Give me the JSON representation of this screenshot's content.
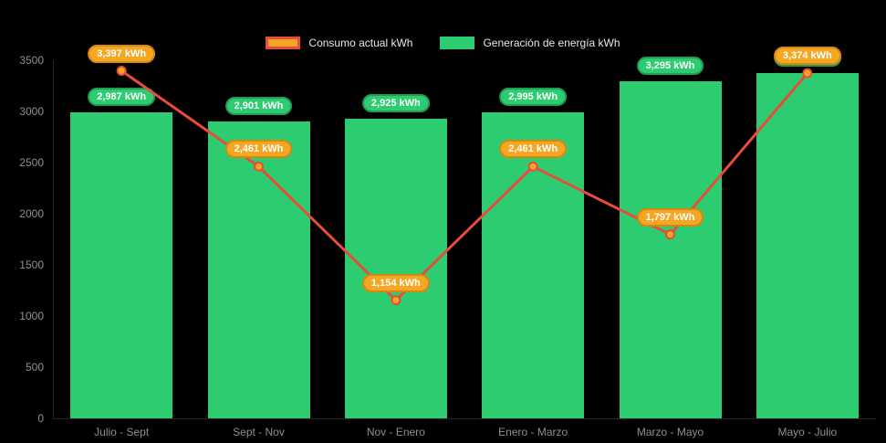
{
  "chart_data": {
    "type": "bar",
    "subtype": "bar+line combo",
    "categories": [
      "Julio - Sept",
      "Sept - Nov",
      "Nov - Enero",
      "Enero - Marzo",
      "Marzo - Mayo",
      "Mayo - Julio"
    ],
    "series": [
      {
        "name": "Consumo actual kWh",
        "type": "line",
        "color": "#e74c3c",
        "marker_color": "#f5a623",
        "values": [
          3397,
          2461,
          1154,
          2461,
          1797,
          3374
        ],
        "labels": [
          "3,397 kWh",
          "2,461 kWh",
          "1,154 kWh",
          "2,461 kWh",
          "1,797 kWh",
          "3,374 kWh"
        ]
      },
      {
        "name": "Generación de energía kWh",
        "type": "bar",
        "color": "#2ecc71",
        "values": [
          2987,
          2901,
          2925,
          2995,
          3295,
          3374
        ],
        "labels": [
          "2,987 kWh",
          "2,901 kWh",
          "2,925 kWh",
          "2,995 kWh",
          "3,295 kWh",
          "3,374 kWh"
        ]
      }
    ],
    "y_ticks": [
      0,
      500,
      1000,
      1500,
      2000,
      2500,
      3000,
      3500
    ],
    "ylim": [
      0,
      3500
    ],
    "xlabel": "",
    "ylabel": "",
    "title": "",
    "legend_position": "top-center",
    "grid": false,
    "background": "#000000",
    "axis_text_color": "#8f8f8f"
  }
}
